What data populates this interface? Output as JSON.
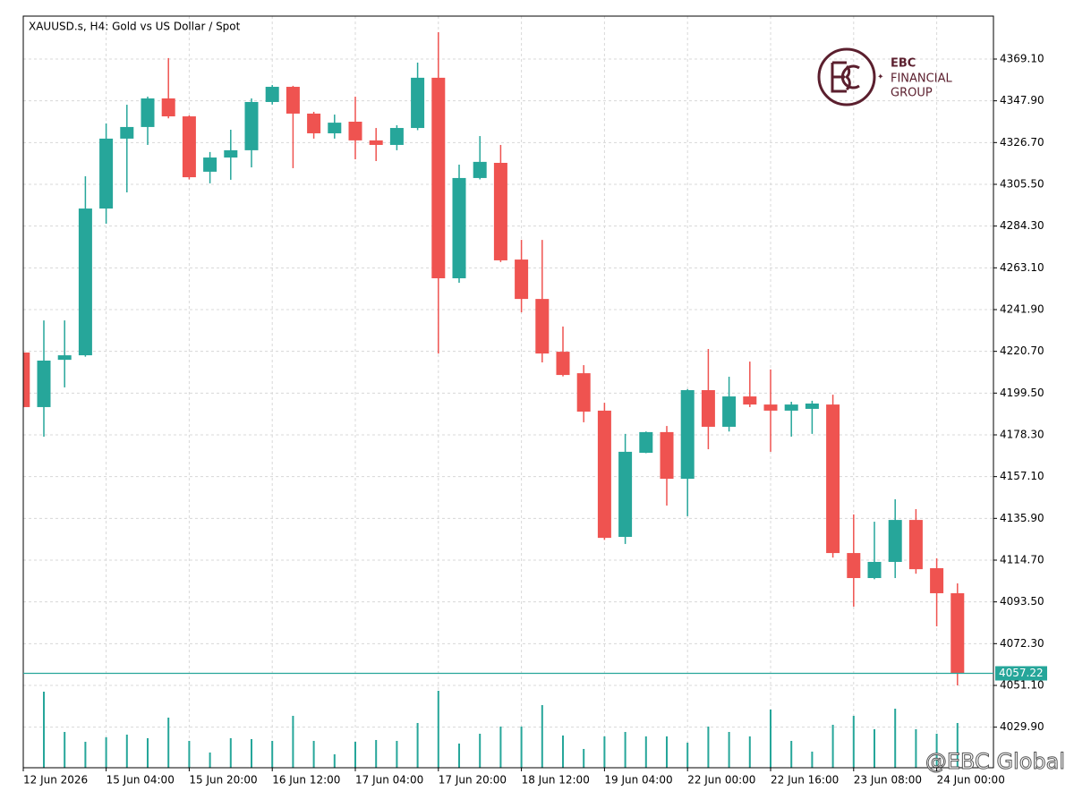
{
  "chart_data": {
    "type": "candlestick",
    "title": "XAUUSD.s, H4:  Gold vs US Dollar / Spot",
    "categories": [
      "12 Jun 2026",
      null,
      null,
      null,
      "15 Jun 04:00",
      null,
      null,
      null,
      "15 Jun 20:00",
      null,
      null,
      null,
      "16 Jun 12:00",
      null,
      null,
      null,
      "17 Jun 04:00",
      null,
      null,
      null,
      "17 Jun 20:00",
      null,
      null,
      null,
      "18 Jun 12:00",
      null,
      null,
      null,
      "19 Jun 04:00",
      null,
      null,
      null,
      "22 Jun 00:00",
      null,
      null,
      null,
      "22 Jun 16:00",
      null,
      null,
      null,
      "23 Jun 08:00",
      null,
      null,
      null,
      "24 Jun 00:00",
      null
    ],
    "open": [
      4220.1,
      4192.4,
      4216.4,
      4218.7,
      4293.2,
      4328.7,
      4334.6,
      4349.1,
      4340.0,
      4311.9,
      4319.1,
      4322.8,
      4347.3,
      4355.0,
      4341.4,
      4331.4,
      4337.3,
      4327.8,
      4325.5,
      4334.1,
      4359.6,
      4257.8,
      4308.7,
      4316.4,
      4267.3,
      4247.3,
      4220.5,
      4209.6,
      4190.6,
      4126.5,
      4169.2,
      4179.7,
      4156.0,
      4201.0,
      4182.4,
      4197.8,
      4193.7,
      4190.6,
      4191.5,
      4193.7,
      4118.3,
      4105.6,
      4113.8,
      4135.1,
      4110.6,
      4097.9
    ],
    "high": [
      4221.0,
      4236.4,
      4236.4,
      4309.6,
      4336.4,
      4345.9,
      4350.0,
      4369.6,
      4340.5,
      4321.9,
      4333.2,
      4349.1,
      4355.9,
      4355.5,
      4342.3,
      4340.9,
      4350.0,
      4334.1,
      4335.5,
      4367.3,
      4382.7,
      4315.5,
      4330.0,
      4325.5,
      4277.3,
      4277.3,
      4233.3,
      4213.7,
      4194.6,
      4178.8,
      4180.0,
      4182.8,
      4201.5,
      4221.9,
      4207.8,
      4215.5,
      4211.5,
      4195.1,
      4195.6,
      4198.7,
      4137.9,
      4134.2,
      4145.6,
      4140.6,
      4115.6,
      4102.9
    ],
    "low": [
      4192.0,
      4177.4,
      4202.4,
      4218.0,
      4285.5,
      4301.4,
      4325.5,
      4339.0,
      4308.0,
      4306.0,
      4307.8,
      4314.1,
      4346.0,
      4313.7,
      4328.7,
      4328.7,
      4318.2,
      4317.3,
      4322.8,
      4333.0,
      4219.6,
      4255.5,
      4308.0,
      4266.0,
      4240.5,
      4215.1,
      4208.0,
      4184.7,
      4125.0,
      4122.9,
      4169.0,
      4142.4,
      4137.0,
      4171.0,
      4180.0,
      4192.4,
      4169.7,
      4177.4,
      4178.8,
      4116.0,
      4091.1,
      4105.0,
      4105.6,
      4107.8,
      4081.1,
      4051.1
    ],
    "close": [
      4192.4,
      4216.0,
      4218.7,
      4293.2,
      4328.7,
      4334.6,
      4349.1,
      4340.0,
      4309.1,
      4319.1,
      4322.8,
      4347.3,
      4355.0,
      4341.4,
      4331.4,
      4336.8,
      4327.8,
      4325.5,
      4334.1,
      4359.6,
      4257.8,
      4308.7,
      4316.9,
      4266.9,
      4247.3,
      4219.6,
      4208.7,
      4190.1,
      4126.0,
      4169.7,
      4179.7,
      4156.0,
      4201.0,
      4182.4,
      4197.8,
      4193.7,
      4190.6,
      4193.7,
      4194.2,
      4118.3,
      4105.6,
      4113.8,
      4135.1,
      4110.1,
      4097.9,
      4057.22
    ],
    "volume": [
      null,
      85,
      40,
      29,
      34,
      37,
      33,
      56,
      30,
      17,
      33,
      32,
      30,
      58,
      30,
      15,
      29,
      31,
      30,
      50,
      86,
      27,
      38,
      46,
      46,
      70,
      36,
      21,
      35,
      40,
      35,
      35,
      28,
      46,
      40,
      35,
      65,
      30,
      18,
      48,
      58,
      43,
      66,
      43,
      38,
      50
    ],
    "volume_lim": [
      0,
      100
    ],
    "up_color": "#26a69a",
    "down_color": "#ef5350",
    "volume_color": "#26a69a",
    "current_price": 4057.22,
    "ylim": [
      4009.3,
      4390.9
    ],
    "yticks": [
      {
        "value": 4029.9,
        "label": "4029.90"
      },
      {
        "value": 4051.1,
        "label": "4051.10"
      },
      {
        "value": 4072.3,
        "label": "4072.30"
      },
      {
        "value": 4093.5,
        "label": "4093.50"
      },
      {
        "value": 4114.7,
        "label": "4114.70"
      },
      {
        "value": 4135.9,
        "label": "4135.90"
      },
      {
        "value": 4157.1,
        "label": "4157.10"
      },
      {
        "value": 4178.3,
        "label": "4178.30"
      },
      {
        "value": 4199.5,
        "label": "4199.50"
      },
      {
        "value": 4220.7,
        "label": "4220.70"
      },
      {
        "value": 4241.9,
        "label": "4241.90"
      },
      {
        "value": 4263.1,
        "label": "4263.10"
      },
      {
        "value": 4284.3,
        "label": "4284.30"
      },
      {
        "value": 4305.5,
        "label": "4305.50"
      },
      {
        "value": 4326.7,
        "label": "4326.70"
      },
      {
        "value": 4347.9,
        "label": "4347.90"
      },
      {
        "value": 4369.1,
        "label": "4369.10"
      }
    ],
    "grid": true,
    "logo": {
      "line1": "EBC",
      "line2": "FINANCIAL",
      "line3": "GROUP"
    },
    "watermark": "@EBC Global"
  }
}
